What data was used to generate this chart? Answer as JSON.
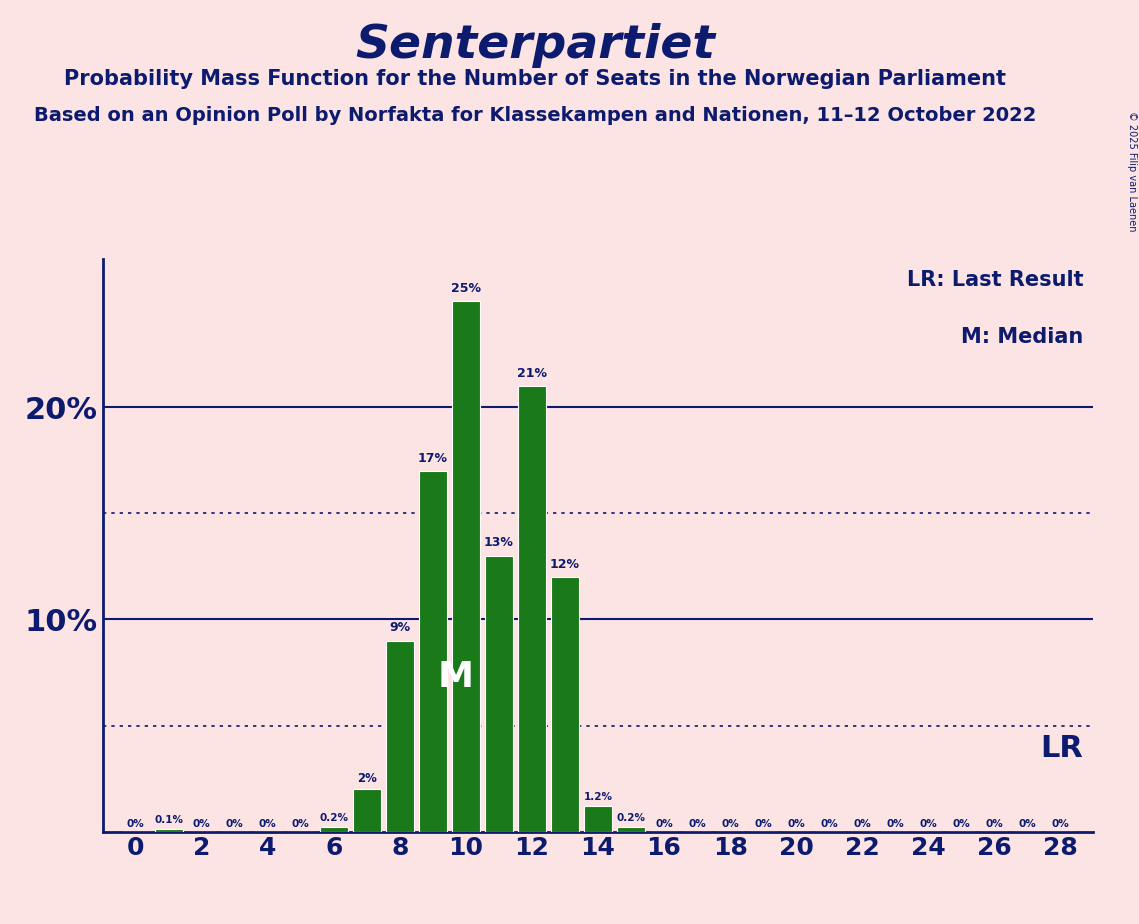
{
  "title": "Senterpartiet",
  "subtitle": "Probability Mass Function for the Number of Seats in the Norwegian Parliament",
  "subtitle2": "Based on an Opinion Poll by Norfakta for Klassekampen and Nationen, 11–12 October 2022",
  "copyright": "© 2025 Filip van Laenen",
  "background_color": "#fce4e4",
  "bar_color": "#1a7a1a",
  "bar_edge_color": "#ffffff",
  "title_color": "#0d1b6e",
  "text_color": "#0d1b6e",
  "seats": [
    0,
    1,
    2,
    3,
    4,
    5,
    6,
    7,
    8,
    9,
    10,
    11,
    12,
    13,
    14,
    15,
    16,
    17,
    18,
    19,
    20,
    21,
    22,
    23,
    24,
    25,
    26,
    27,
    28
  ],
  "probabilities": [
    0.0,
    0.1,
    0.0,
    0.0,
    0.0,
    0.0,
    0.2,
    2.0,
    9.0,
    17.0,
    25.0,
    13.0,
    21.0,
    12.0,
    1.2,
    0.2,
    0.0,
    0.0,
    0.0,
    0.0,
    0.0,
    0.0,
    0.0,
    0.0,
    0.0,
    0.0,
    0.0,
    0.0,
    0.0
  ],
  "median_seat": 10,
  "lr_seat": 14,
  "solid_gridlines": [
    10,
    20
  ],
  "dotted_gridlines": [
    5,
    15
  ],
  "legend_lr": "LR: Last Result",
  "legend_m": "M: Median",
  "lr_label": "LR",
  "m_label": "M",
  "xlabel_seats": [
    0,
    2,
    4,
    6,
    8,
    10,
    12,
    14,
    16,
    18,
    20,
    22,
    24,
    26,
    28
  ],
  "ylim": [
    0,
    27
  ],
  "xlim": [
    -1,
    29
  ]
}
